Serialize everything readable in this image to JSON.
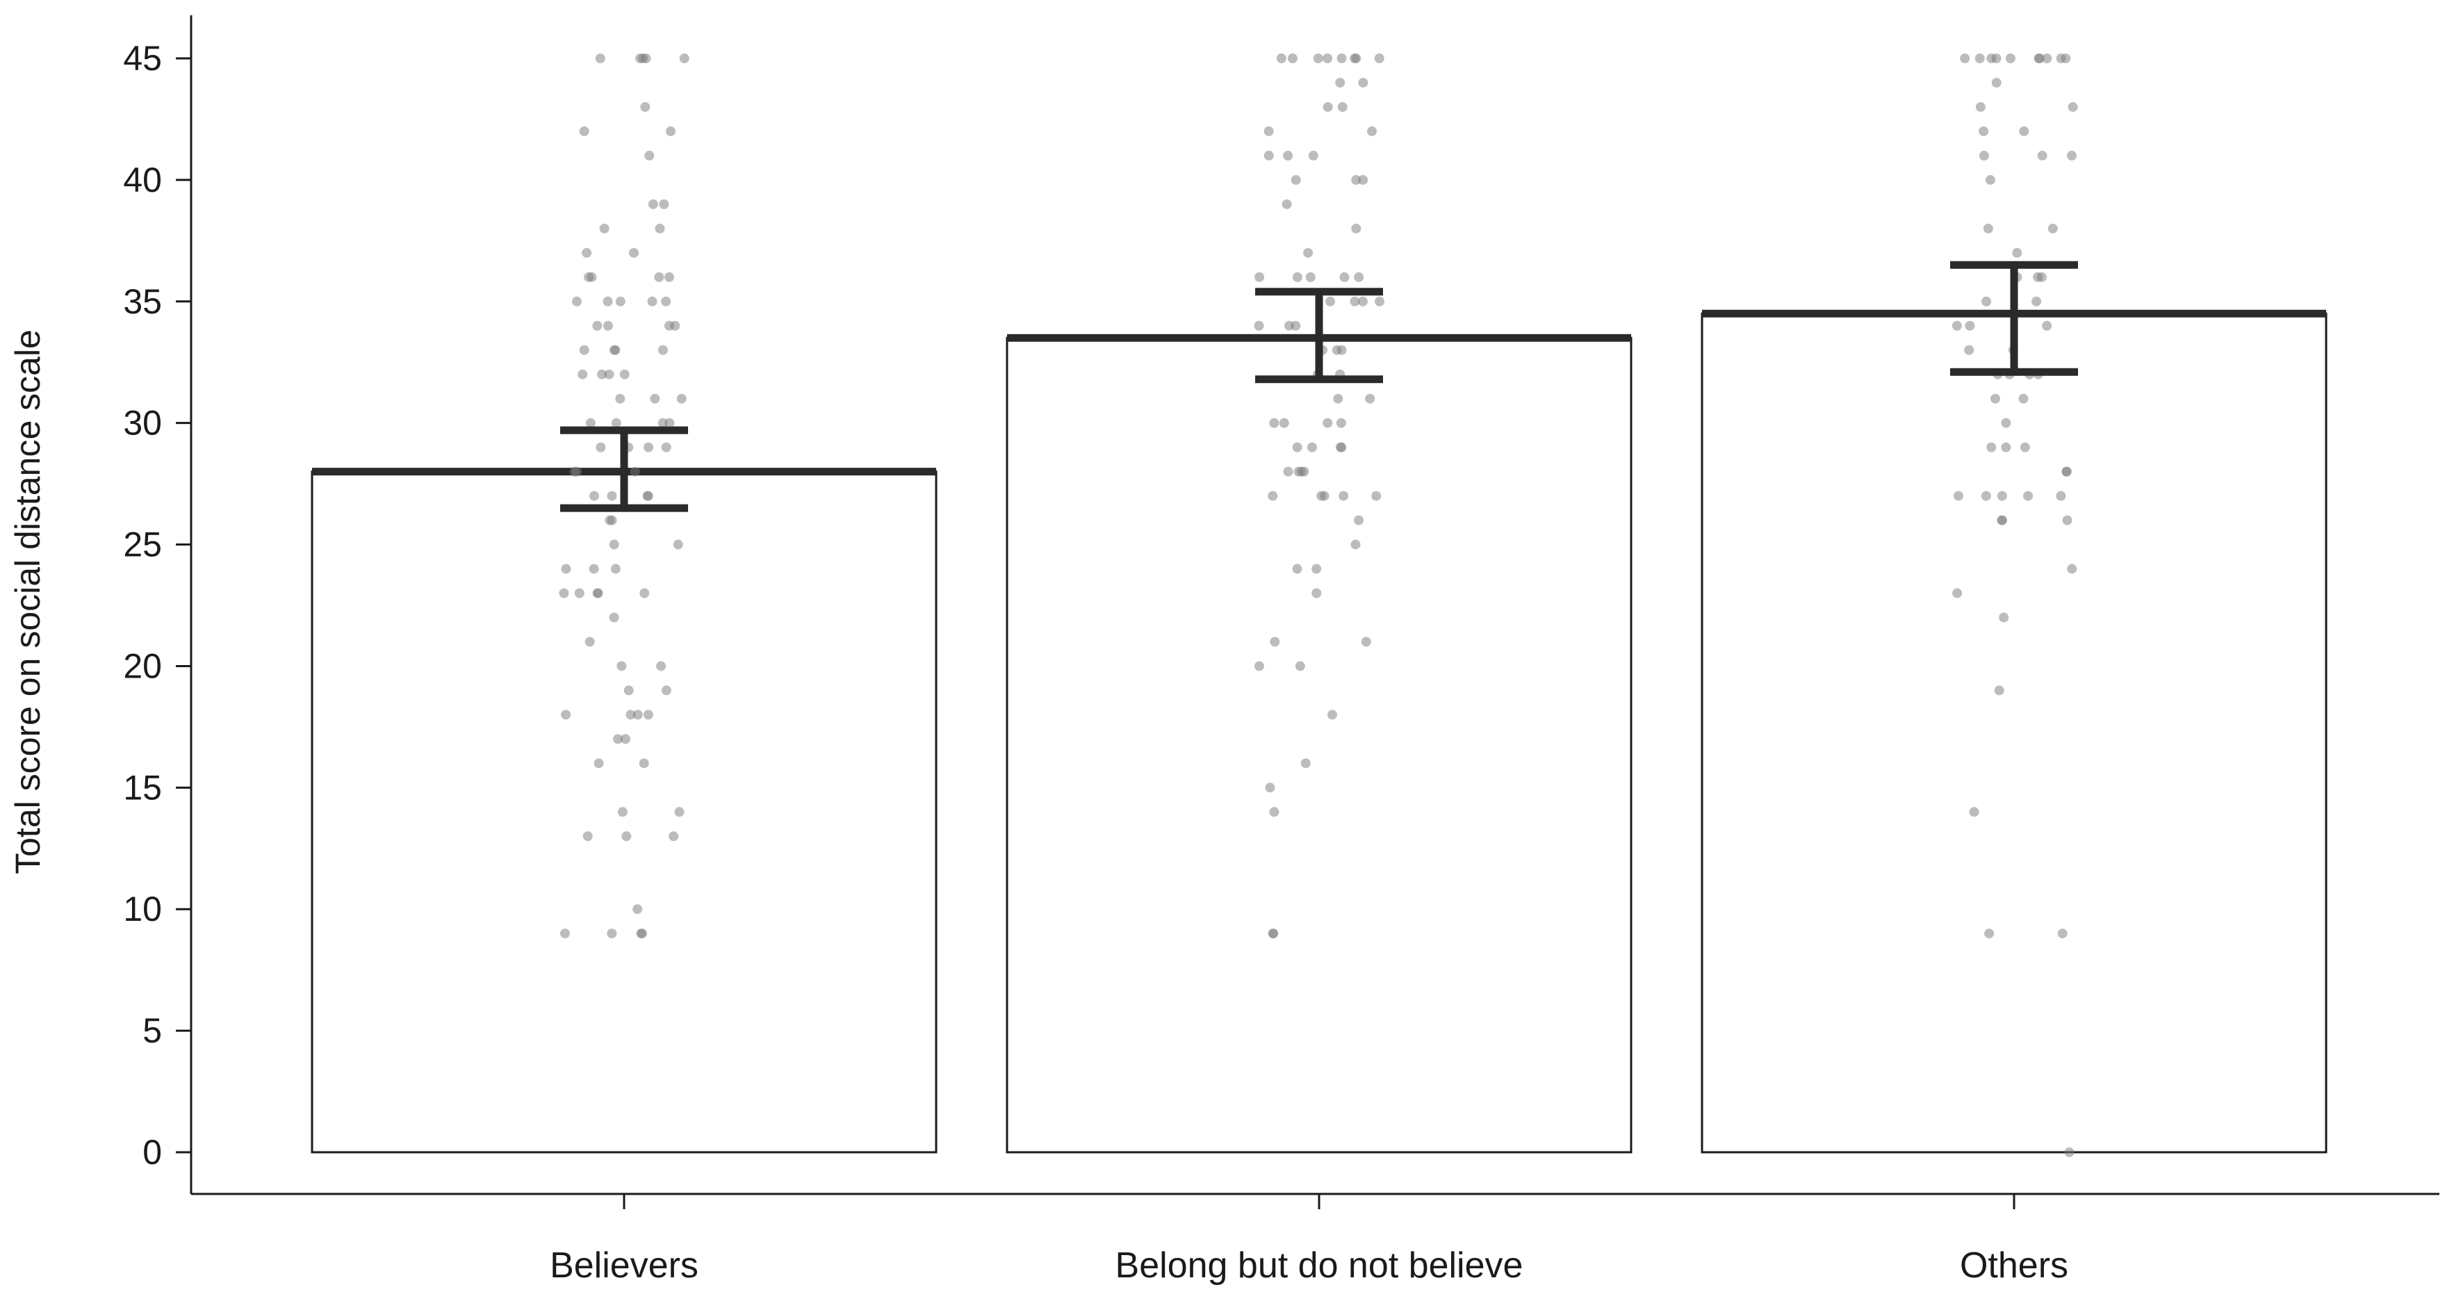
{
  "chart_data": {
    "type": "bar",
    "title": "",
    "xlabel": "",
    "ylabel": "Total score on social distance scale",
    "ylim": [
      0,
      45
    ],
    "yticks": [
      0,
      5,
      10,
      15,
      20,
      25,
      30,
      35,
      40,
      45
    ],
    "grid": false,
    "legend": "none",
    "categories": [
      "Believers",
      "Belong but do not believe",
      "Others"
    ],
    "values": [
      28,
      33.5,
      34.5
    ],
    "error_low": [
      26.5,
      31.8,
      32.1
    ],
    "error_high": [
      29.7,
      35.4,
      36.5
    ],
    "points": [
      [
        45,
        45,
        45,
        45,
        45,
        43,
        42,
        42,
        41,
        39,
        39,
        38,
        38,
        37,
        37,
        36,
        36,
        36,
        36,
        35,
        35,
        35,
        35,
        35,
        34,
        34,
        34,
        34,
        33,
        33,
        33,
        33,
        32,
        32,
        32,
        32,
        31,
        31,
        31,
        30,
        30,
        30,
        30,
        29,
        29,
        29,
        29,
        28,
        28,
        28,
        27,
        27,
        27,
        27,
        26,
        26,
        25,
        25,
        24,
        24,
        24,
        23,
        23,
        23,
        23,
        23,
        22,
        21,
        20,
        20,
        19,
        19,
        18,
        18,
        18,
        18,
        17,
        17,
        16,
        16,
        14,
        14,
        13,
        13,
        13,
        10,
        9,
        9,
        9,
        9
      ],
      [
        45,
        45,
        45,
        45,
        45,
        45,
        45,
        45,
        44,
        44,
        43,
        43,
        42,
        42,
        41,
        41,
        41,
        40,
        40,
        40,
        39,
        38,
        37,
        36,
        36,
        36,
        36,
        36,
        35,
        35,
        35,
        35,
        34,
        34,
        34,
        33,
        33,
        33,
        32,
        32,
        31,
        31,
        30,
        30,
        30,
        30,
        29,
        29,
        29,
        29,
        28,
        28,
        28,
        28,
        27,
        27,
        27,
        27,
        27,
        26,
        25,
        24,
        24,
        23,
        21,
        21,
        20,
        20,
        18,
        16,
        15,
        14,
        9,
        9
      ],
      [
        45,
        45,
        45,
        45,
        45,
        45,
        45,
        45,
        45,
        45,
        44,
        43,
        43,
        42,
        42,
        41,
        41,
        41,
        40,
        38,
        38,
        37,
        36,
        36,
        36,
        35,
        35,
        34,
        34,
        34,
        33,
        33,
        32,
        32,
        32,
        32,
        31,
        31,
        30,
        29,
        29,
        29,
        28,
        28,
        27,
        27,
        27,
        27,
        27,
        26,
        26,
        26,
        24,
        23,
        22,
        19,
        14,
        9,
        9,
        0
      ]
    ]
  }
}
